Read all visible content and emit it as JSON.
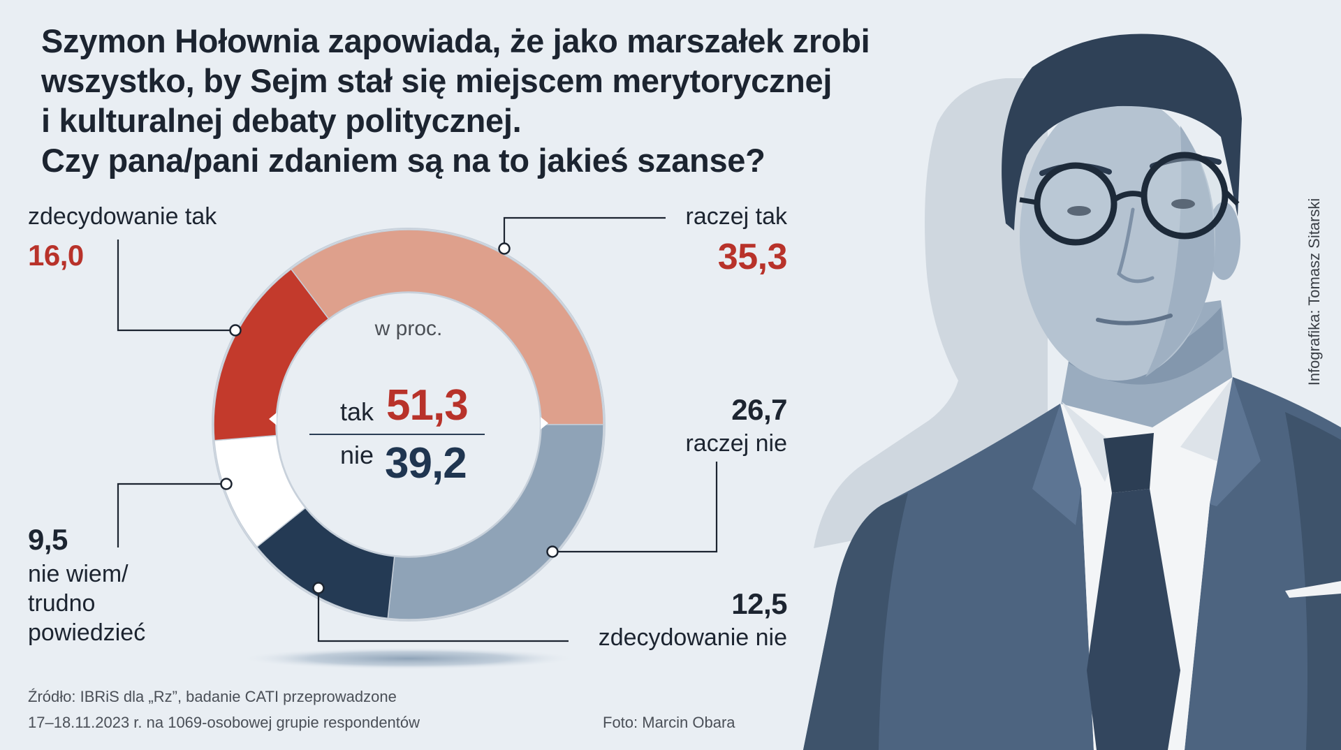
{
  "colors": {
    "background": "#e9eef3",
    "text": "#1c2430",
    "accent_red": "#b8322a",
    "accent_navy": "#1f3550"
  },
  "chart_data": {
    "type": "pie",
    "donut": true,
    "title": [
      "Szymon Hołownia zapowiada, że jako marszałek zrobi",
      "wszystko, by Sejm stał się miejscem merytorycznej",
      "i kulturalnej debaty politycznej.",
      "Czy pana/pani zdaniem są na to jakieś szanse?"
    ],
    "unit_label": "w proc.",
    "slices": [
      {
        "label": "raczej tak",
        "value": 35.3,
        "value_text": "35,3",
        "color": "#dea08c"
      },
      {
        "label": "raczej nie",
        "value": 26.7,
        "value_text": "26,7",
        "color": "#8fa3b7"
      },
      {
        "label": "zdecydowanie nie",
        "value": 12.5,
        "value_text": "12,5",
        "color": "#243a54"
      },
      {
        "label": "nie wiem/\ntrudno\npowiedzieć",
        "value": 9.5,
        "value_text": "9,5",
        "color": "#ffffff"
      },
      {
        "label": "zdecydowanie tak",
        "value": 16.0,
        "value_text": "16,0",
        "color": "#c33a2c"
      }
    ],
    "summary": [
      {
        "label": "tak",
        "value": 51.3,
        "value_text": "51,3"
      },
      {
        "label": "nie",
        "value": 39.2,
        "value_text": "39,2"
      }
    ]
  },
  "footer": {
    "source_lines": [
      "Źródło: IBRiS dla „Rz”, badanie CATI przeprowadzone",
      "17–18.11.2023 r. na 1069-osobowej grupie respondentów"
    ],
    "photo_credit": "Foto: Marcin Obara"
  },
  "credit": "Infografika: Tomasz Sitarski"
}
